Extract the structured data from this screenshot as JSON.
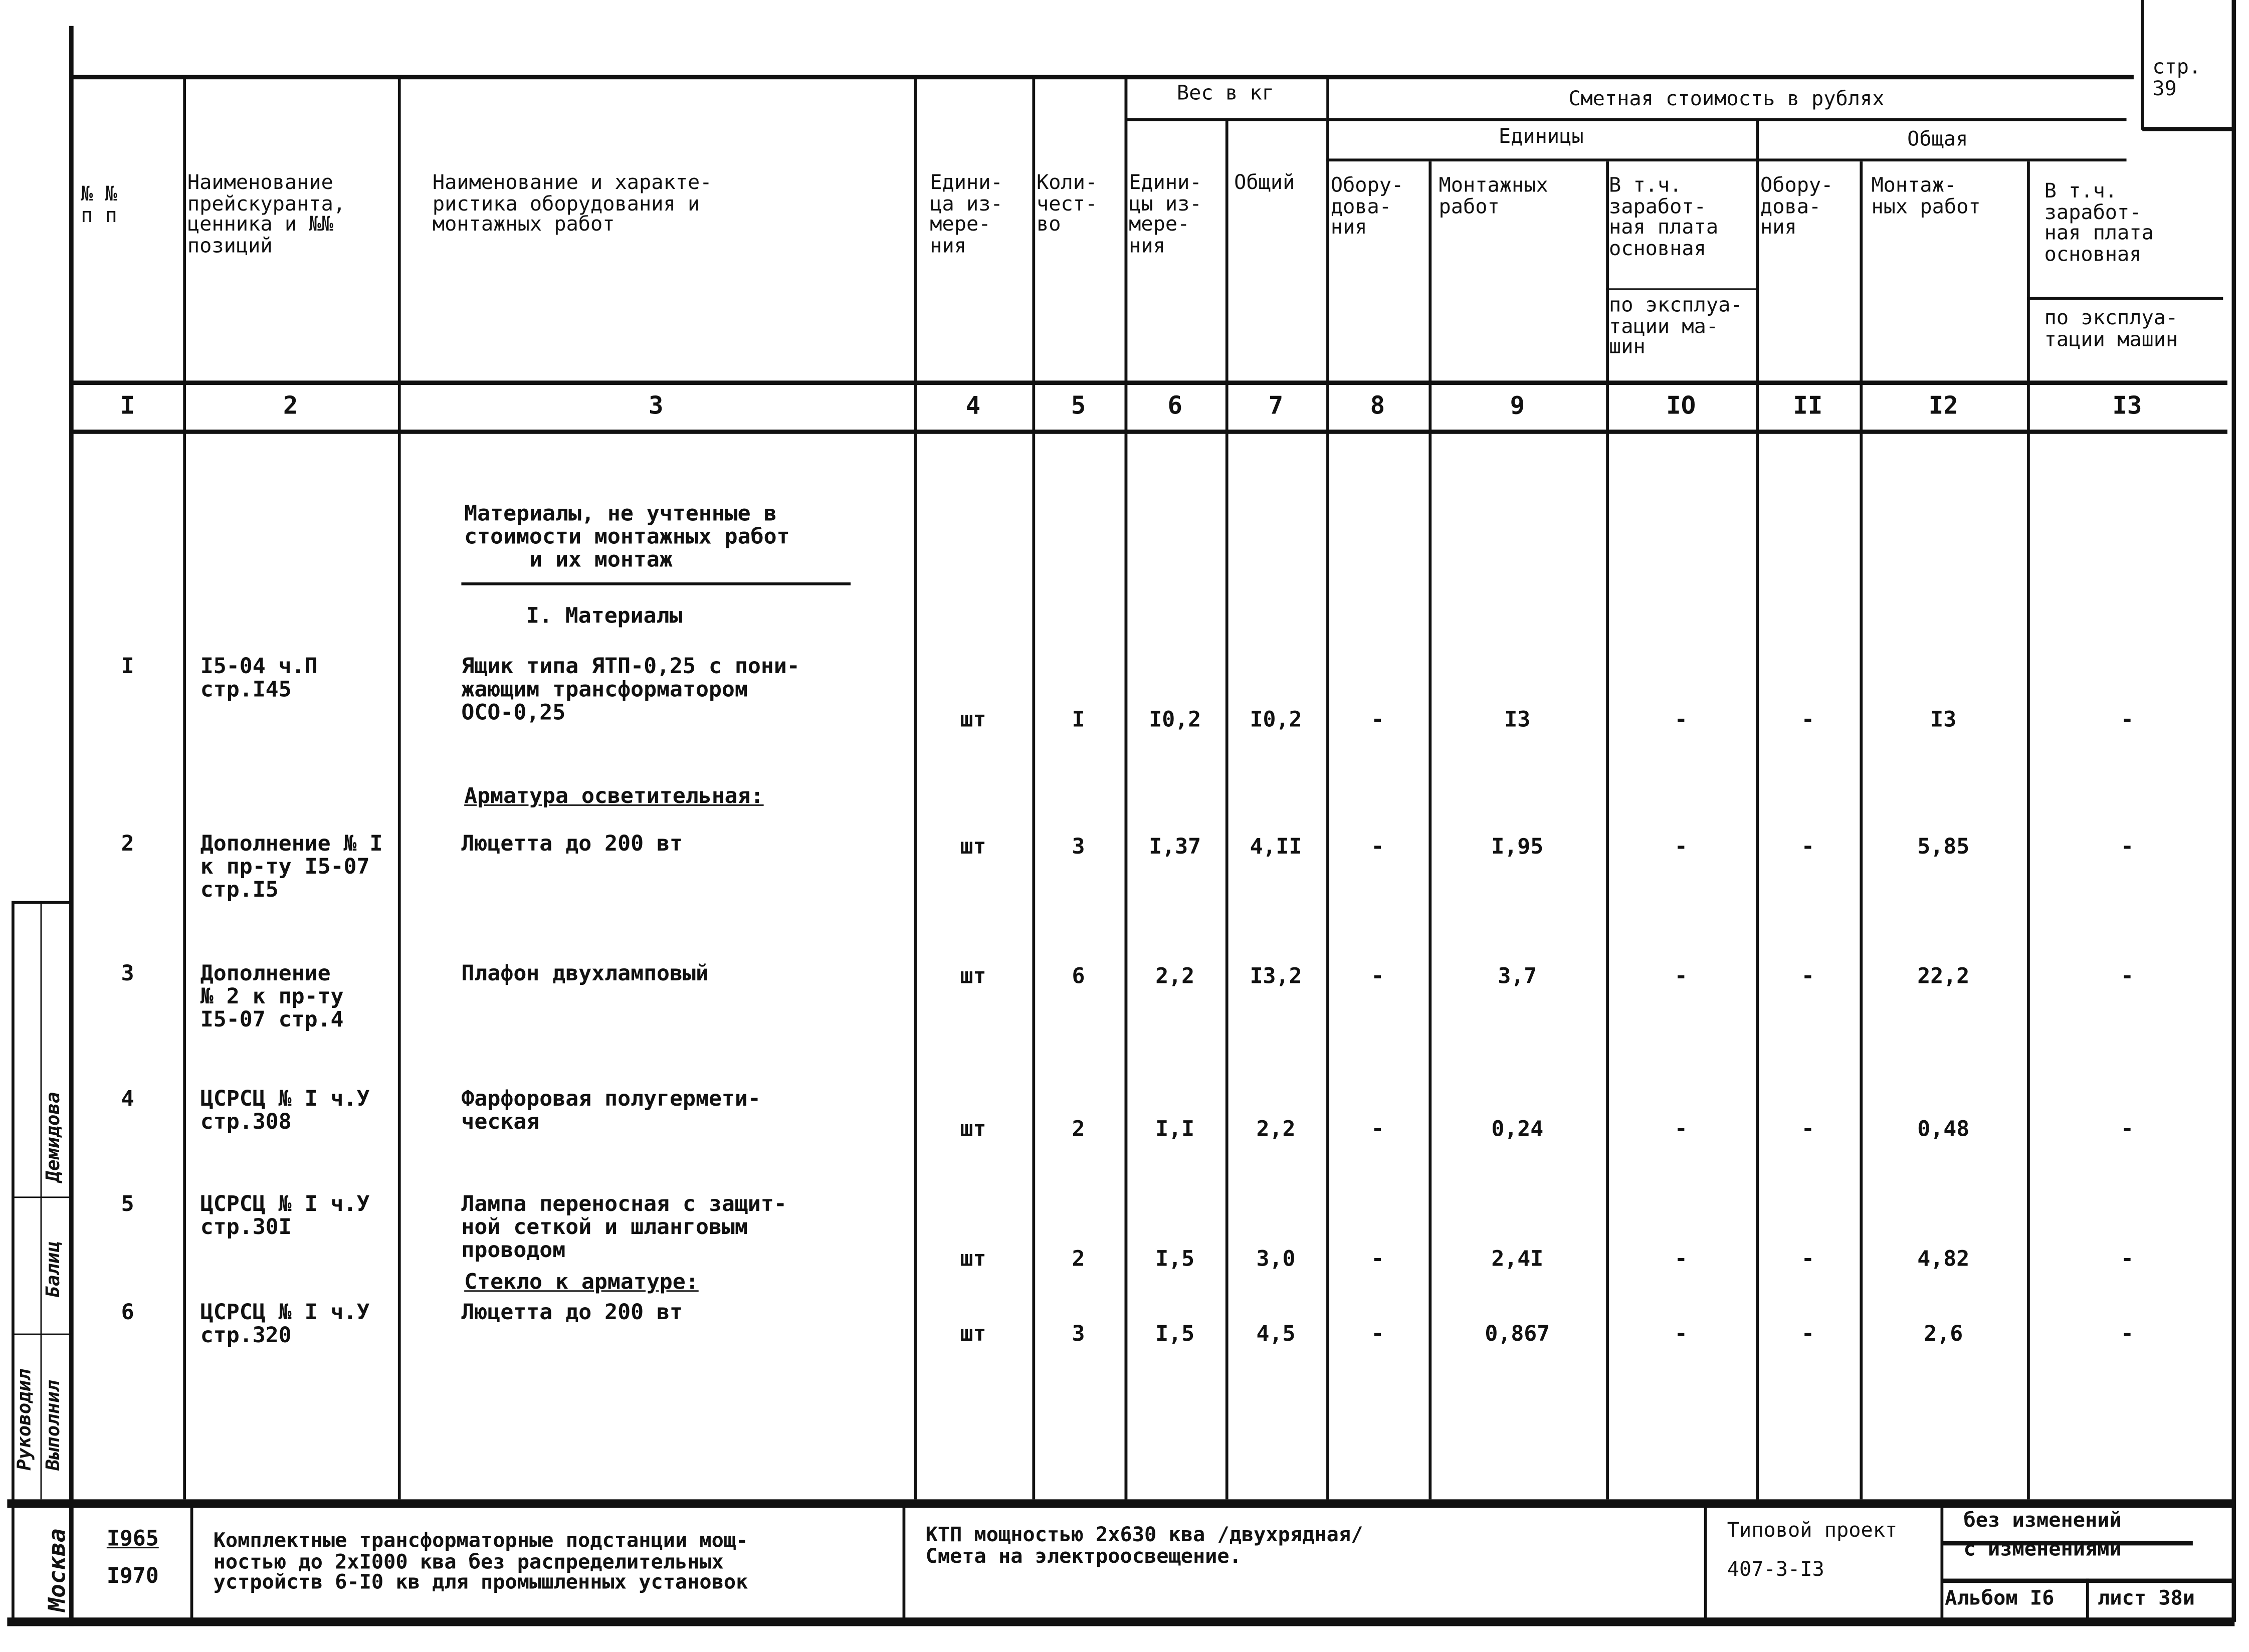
{
  "page_label": "стр.\n39",
  "header": {
    "col1": "№ №\nп п",
    "col2": "Наименование\nпрейскуранта,\nценника и №№\nпозиций",
    "col3": "Наименование и характе-\nристика оборудования и\nмонтажных работ",
    "col4": "Едини-\nца из-\nмере-\nния",
    "col5": "Коли-\nчест-\nво",
    "weight_group": "Вес в кг",
    "col6": "Едини-\nцы из-\nмере-\nния",
    "col7": "Общий",
    "cost_group": "Сметная стоимость в рублях",
    "unit_group": "Единицы",
    "total_group": "Общая",
    "col8": "Обору-\nдова-\nния",
    "col9": "Монтажных\nработ",
    "col10a": "В т.ч.\nзаработ-\nная плата\nосновная",
    "col10b": "по эксплуа-\nтации ма-\nшин",
    "col11": "Обору-\nдова-\nния",
    "col12": "Монтаж-\nных работ",
    "col13a": "В т.ч.\nзаработ-\nная плата\nосновная",
    "col13b": "по эксплуа-\nтации машин"
  },
  "column_numbers": [
    "I",
    "2",
    "3",
    "4",
    "5",
    "6",
    "7",
    "8",
    "9",
    "IO",
    "II",
    "I2",
    "I3"
  ],
  "section_title": "Материалы, не учтенные в\nстоимости монтажных работ\n     и их монтаж",
  "subsection": "I. Материалы",
  "group_armature": "Арматура осветительная:",
  "group_glass": "Стекло к арматуре:",
  "rows": [
    {
      "num": "I",
      "ref": "I5-04 ч.П\nстр.I45",
      "name": "Ящик типа ЯТП-0,25 с пони-\nжающим трансформатором\nОСО-0,25",
      "unit": "шт",
      "qty": "I",
      "w_unit": "I0,2",
      "w_total": "I0,2",
      "eq_unit": "-",
      "mount_unit": "I3",
      "wage_unit": "-",
      "eq_total": "-",
      "mount_total": "I3",
      "wage_total": "-"
    },
    {
      "num": "2",
      "ref": "Дополнение № I\nк пр-ту I5-07\nстр.I5",
      "name": "Люцетта до 200 вт",
      "unit": "шт",
      "qty": "3",
      "w_unit": "I,37",
      "w_total": "4,II",
      "eq_unit": "-",
      "mount_unit": "I,95",
      "wage_unit": "-",
      "eq_total": "-",
      "mount_total": "5,85",
      "wage_total": "-"
    },
    {
      "num": "3",
      "ref": "Дополнение\n№ 2 к пр-ту\nI5-07 стр.4",
      "name": "Плафон двухламповый",
      "unit": "шт",
      "qty": "6",
      "w_unit": "2,2",
      "w_total": "I3,2",
      "eq_unit": "-",
      "mount_unit": "3,7",
      "wage_unit": "-",
      "eq_total": "-",
      "mount_total": "22,2",
      "wage_total": "-"
    },
    {
      "num": "4",
      "ref": "ЦСРСЦ № I ч.У\nстр.308",
      "name": "Фарфоровая полугермети-\nческая",
      "unit": "шт",
      "qty": "2",
      "w_unit": "I,I",
      "w_total": "2,2",
      "eq_unit": "-",
      "mount_unit": "0,24",
      "wage_unit": "-",
      "eq_total": "-",
      "mount_total": "0,48",
      "wage_total": "-"
    },
    {
      "num": "5",
      "ref": "ЦСРСЦ № I ч.У\nстр.30I",
      "name": "Лампа переносная с защит-\nной сеткой и шланговым\nпроводом",
      "unit": "шт",
      "qty": "2",
      "w_unit": "I,5",
      "w_total": "3,0",
      "eq_unit": "-",
      "mount_unit": "2,4I",
      "wage_unit": "-",
      "eq_total": "-",
      "mount_total": "4,82",
      "wage_total": "-"
    },
    {
      "num": "6",
      "ref": "ЦСРСЦ № I ч.У\nстр.320",
      "name": "Люцетта до 200 вт",
      "unit": "шт",
      "qty": "3",
      "w_unit": "I,5",
      "w_total": "4,5",
      "eq_unit": "-",
      "mount_unit": "0,867",
      "wage_unit": "-",
      "eq_total": "-",
      "mount_total": "2,6",
      "wage_total": "-"
    }
  ],
  "footer": {
    "year1": "I965",
    "year2": "I970",
    "title": "Комплектные трансформаторные подстанции мощ-\nностью до 2хI000 ква без распределительных\nустройств 6-I0 кв для промышленных установок",
    "subtitle": "КТП мощностью 2х630 ква /двухрядная/\nСмета на электроосвещение.",
    "project_label": "Типовой проект",
    "project_code": "407-3-I3",
    "no_changes": "без изменений",
    "with_changes": "с изменениями",
    "album": "Альбом I6",
    "sheet": "лист 38и"
  },
  "stamp": {
    "city": "Москва",
    "head": "Руководил",
    "exec": "Выполнил",
    "sign1": "Демидова",
    "sign2": "Балиц"
  }
}
